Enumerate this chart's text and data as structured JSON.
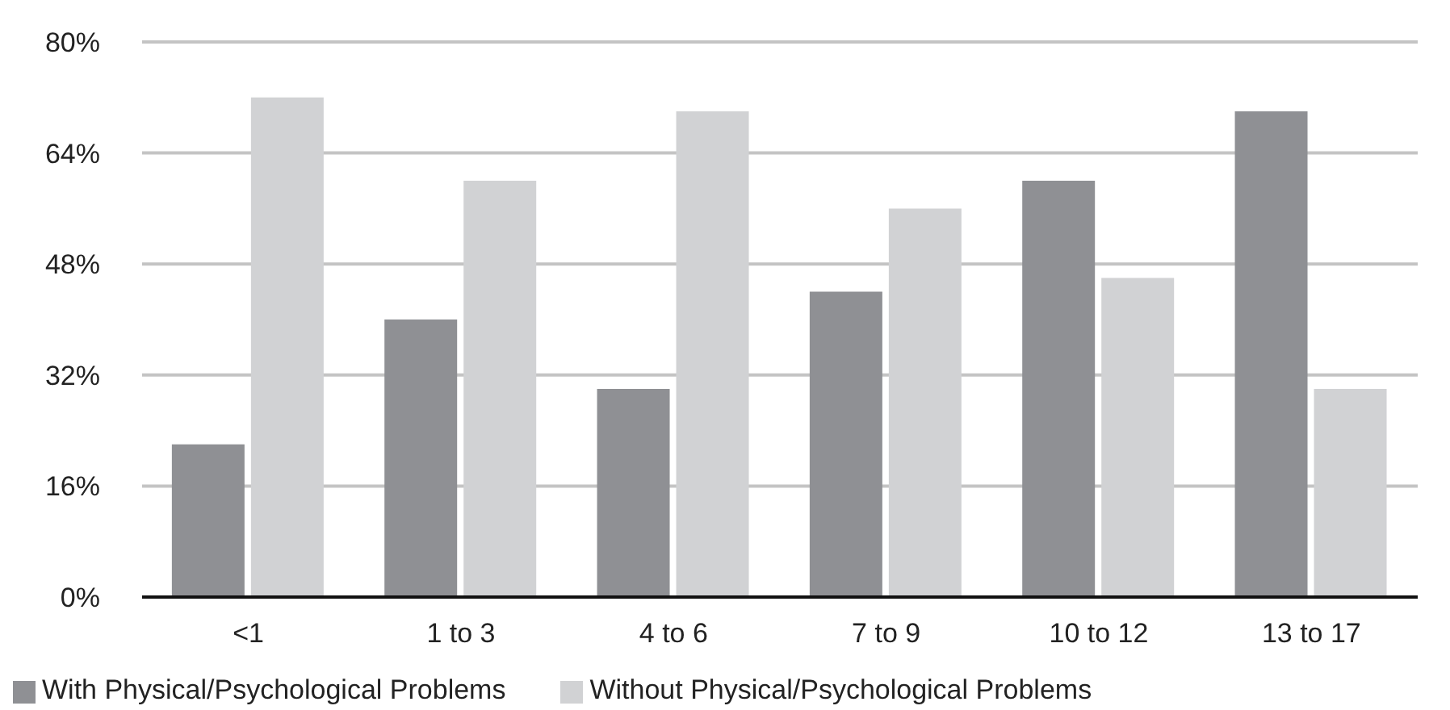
{
  "chart_data": {
    "type": "bar",
    "categories": [
      "<1",
      "1 to 3",
      "4 to 6",
      "7 to 9",
      "10 to 12",
      "13 to 17"
    ],
    "series": [
      {
        "name": "With Physical/Psychological Problems",
        "color": "#8f9094",
        "values": [
          22,
          40,
          30,
          44,
          60,
          70
        ]
      },
      {
        "name": "Without Physical/Psychological Problems",
        "color": "#d1d2d4",
        "values": [
          72,
          60,
          70,
          56,
          46,
          30
        ]
      }
    ],
    "ylim": [
      0,
      80
    ],
    "yticks": [
      {
        "value": 0,
        "label": "0%"
      },
      {
        "value": 16,
        "label": "16%"
      },
      {
        "value": 32,
        "label": "32%"
      },
      {
        "value": 48,
        "label": "48%"
      },
      {
        "value": 64,
        "label": "64%"
      },
      {
        "value": 80,
        "label": "80%"
      }
    ],
    "grid": "y",
    "legend": "bottom"
  }
}
